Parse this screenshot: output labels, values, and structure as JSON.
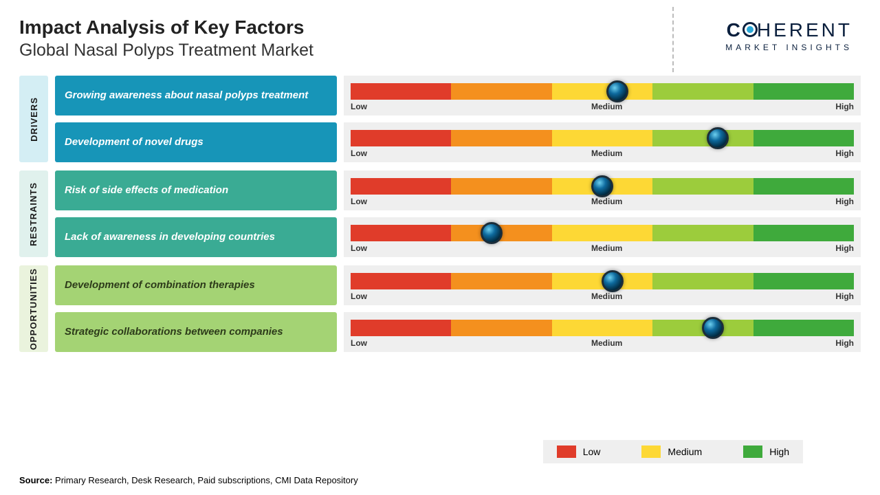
{
  "title": "Impact Analysis of Key Factors",
  "subtitle": "Global Nasal Polyps Treatment Market",
  "logo": {
    "line1_part1": "C",
    "line1_part2": "HERENT",
    "line2": "MARKET INSIGHTS"
  },
  "gauge": {
    "segment_colors": [
      "#e03c2a",
      "#f4901e",
      "#fdd835",
      "#9ccc3c",
      "#3faa3c"
    ],
    "labels": {
      "low": "Low",
      "medium": "Medium",
      "high": "High"
    },
    "bg_color": "#efefef",
    "marker_style": {
      "diameter": 32,
      "border_color": "#1b2d3a",
      "gradient": [
        "#6dd0f0",
        "#0e6a9e",
        "#012a40"
      ]
    }
  },
  "sections": [
    {
      "label": "DRIVERS",
      "label_bg": "#d4eef4",
      "label_text_color": "#1a1a1a",
      "box_bg": "#1795b8",
      "box_text_color": "#ffffff",
      "factors": [
        {
          "text": "Growing awareness about nasal polyps treatment",
          "marker_pct": 53
        },
        {
          "text": "Development of novel drugs",
          "marker_pct": 73
        }
      ]
    },
    {
      "label": "RESTRAINTS",
      "label_bg": "#e0f1ed",
      "label_text_color": "#1a1a1a",
      "box_bg": "#3aab94",
      "box_text_color": "#ffffff",
      "factors": [
        {
          "text": "Risk of side effects of medication",
          "marker_pct": 50
        },
        {
          "text": "Lack of awareness in developing countries",
          "marker_pct": 28
        }
      ]
    },
    {
      "label": "OPPORTUNITIES",
      "label_bg": "#eaf3dd",
      "label_text_color": "#1a1a1a",
      "box_bg": "#a4d374",
      "box_text_color": "#2d3b1a",
      "factors": [
        {
          "text": "Development of combination therapies",
          "marker_pct": 52
        },
        {
          "text": "Strategic collaborations between companies",
          "marker_pct": 72
        }
      ]
    }
  ],
  "legend": {
    "bg_color": "#efefef",
    "items": [
      {
        "label": "Low",
        "color": "#e03c2a"
      },
      {
        "label": "Medium",
        "color": "#fdd835"
      },
      {
        "label": "High",
        "color": "#3faa3c"
      }
    ]
  },
  "source": {
    "prefix": "Source:",
    "text": " Primary Research, Desk Research, Paid subscriptions, CMI Data Repository"
  }
}
